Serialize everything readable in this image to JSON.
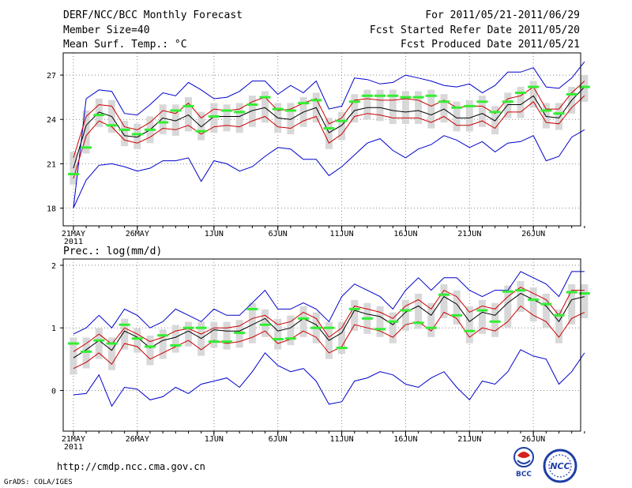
{
  "header": {
    "title": "DERF/NCC/BCC Monthly Forecast",
    "member_size": "Member Size=40",
    "variable": "Mean Surf. Temp.: °C",
    "period": "For 2011/05/21-2011/06/29",
    "start_date": "Fcst Started Refer Date 2011/05/20",
    "produced_date": "Fcst Produced Date 2011/05/21"
  },
  "footer": {
    "url": "http://cmdp.ncc.cma.gov.cn",
    "grads_credit": "GrADS: COLA/IGES",
    "logo_bcc": "BCC",
    "logo_ncc": "NCC"
  },
  "colors": {
    "envelope": "#0000cc",
    "spread": "#cc0000",
    "mean": "#000000",
    "box": "#d8d8d8",
    "marker": "#33ee33"
  },
  "chart_data": [
    {
      "type": "line",
      "title": "Mean Surf. Temp.: °C",
      "x_tick_labels": [
        "21MAY",
        "26MAY",
        "1JUN",
        "6JUN",
        "11JUN",
        "16JUN",
        "21JUN",
        "26JUN"
      ],
      "x_tick_days": [
        0,
        5,
        11,
        16,
        21,
        26,
        31,
        36
      ],
      "x_year_label": "2011",
      "y_ticks": [
        18,
        21,
        24,
        27
      ],
      "ylim": [
        16.8,
        28.5
      ],
      "xlim": [
        -0.8,
        39.7
      ],
      "series": [
        {
          "name": "max",
          "values": [
            18.0,
            25.4,
            26.0,
            25.9,
            24.4,
            24.3,
            25.0,
            25.8,
            25.6,
            26.5,
            26.0,
            25.4,
            25.5,
            25.9,
            26.6,
            26.6,
            25.7,
            26.3,
            25.8,
            26.6,
            24.7,
            24.9,
            26.8,
            26.7,
            26.4,
            26.5,
            27.0,
            26.8,
            26.6,
            26.3,
            26.2,
            26.4,
            25.8,
            26.3,
            27.2,
            27.2,
            27.5,
            26.2,
            26.1,
            26.8,
            27.9
          ]
        },
        {
          "name": "spread_high",
          "values": [
            21.4,
            24.2,
            25.0,
            24.9,
            23.5,
            23.3,
            23.8,
            24.6,
            24.4,
            25.1,
            24.1,
            24.7,
            24.6,
            24.7,
            25.2,
            25.5,
            24.6,
            24.7,
            25.1,
            25.4,
            23.7,
            24.1,
            25.3,
            25.4,
            25.3,
            25.3,
            25.4,
            25.3,
            24.9,
            25.3,
            24.8,
            24.9,
            24.9,
            24.4,
            25.4,
            25.6,
            26.2,
            24.7,
            24.7,
            25.8,
            26.6
          ]
        },
        {
          "name": "mean",
          "values": [
            20.7,
            23.6,
            24.5,
            24.2,
            22.9,
            22.8,
            23.3,
            24.1,
            23.9,
            24.3,
            23.5,
            24.2,
            24.2,
            24.2,
            24.6,
            24.8,
            24.1,
            24.0,
            24.5,
            24.8,
            23.1,
            23.6,
            24.6,
            24.8,
            24.8,
            24.6,
            24.5,
            24.6,
            24.3,
            24.7,
            24.1,
            24.1,
            24.4,
            23.9,
            25.0,
            25.0,
            25.6,
            24.2,
            24.1,
            25.3,
            26.2
          ]
        },
        {
          "name": "spread_low",
          "values": [
            20.0,
            22.9,
            23.9,
            23.5,
            22.6,
            22.4,
            22.8,
            23.4,
            23.3,
            23.6,
            23.0,
            23.5,
            23.6,
            23.5,
            23.9,
            24.2,
            23.5,
            23.4,
            23.9,
            24.2,
            22.4,
            23.0,
            24.2,
            24.4,
            24.3,
            24.1,
            24.1,
            24.1,
            23.8,
            24.2,
            23.6,
            23.6,
            23.9,
            23.4,
            24.5,
            24.5,
            25.2,
            23.8,
            23.7,
            24.8,
            25.6
          ]
        },
        {
          "name": "min",
          "values": [
            18.0,
            19.9,
            20.9,
            21.0,
            20.8,
            20.5,
            20.7,
            21.2,
            21.2,
            21.4,
            19.8,
            21.2,
            21.0,
            20.5,
            20.8,
            21.5,
            22.1,
            22.0,
            21.3,
            21.3,
            20.2,
            20.8,
            21.6,
            22.4,
            22.7,
            21.9,
            21.4,
            22.0,
            22.3,
            22.9,
            22.6,
            22.1,
            22.5,
            21.8,
            22.4,
            22.5,
            22.9,
            21.2,
            21.5,
            22.8,
            23.3
          ]
        },
        {
          "name": "observed",
          "values": [
            20.3,
            22.1,
            24.3,
            23.6,
            23.3,
            23.0,
            23.3,
            23.8,
            24.6,
            24.9,
            23.2,
            24.2,
            24.6,
            24.5,
            25.0,
            25.5,
            24.7,
            24.6,
            25.1,
            25.3,
            23.4,
            23.9,
            25.2,
            25.6,
            25.6,
            25.6,
            25.5,
            25.5,
            25.6,
            25.2,
            24.8,
            24.9,
            25.2,
            24.5,
            25.2,
            25.8,
            26.2,
            24.6,
            24.4,
            25.7,
            26.2
          ]
        }
      ]
    },
    {
      "type": "line",
      "title": "Prec.: log(mm/d)",
      "x_tick_labels": [
        "21MAY",
        "26MAY",
        "1JUN",
        "6JUN",
        "11JUN",
        "16JUN",
        "21JUN",
        "26JUN"
      ],
      "x_tick_days": [
        0,
        5,
        11,
        16,
        21,
        26,
        31,
        36
      ],
      "x_year_label": "2011",
      "y_ticks": [
        0,
        1,
        2
      ],
      "ylim": [
        -0.65,
        2.1
      ],
      "xlim": [
        -0.8,
        39.7
      ],
      "series": [
        {
          "name": "max",
          "values": [
            0.9,
            1.0,
            1.2,
            1.0,
            1.3,
            1.2,
            1.0,
            1.1,
            1.3,
            1.2,
            1.1,
            1.3,
            1.2,
            1.2,
            1.4,
            1.6,
            1.3,
            1.3,
            1.4,
            1.3,
            1.1,
            1.5,
            1.7,
            1.6,
            1.5,
            1.3,
            1.6,
            1.8,
            1.6,
            1.8,
            1.8,
            1.6,
            1.5,
            1.6,
            1.6,
            1.9,
            1.8,
            1.7,
            1.5,
            1.9,
            1.9
          ]
        },
        {
          "name": "spread_high",
          "values": [
            0.62,
            0.75,
            0.9,
            0.74,
            1.0,
            0.9,
            0.78,
            0.85,
            0.95,
            0.99,
            0.9,
            1.0,
            1.0,
            1.03,
            1.15,
            1.2,
            1.05,
            1.1,
            1.25,
            1.15,
            0.85,
            1.0,
            1.35,
            1.3,
            1.25,
            1.15,
            1.35,
            1.45,
            1.3,
            1.6,
            1.5,
            1.25,
            1.35,
            1.3,
            1.5,
            1.65,
            1.55,
            1.45,
            1.2,
            1.6,
            1.6
          ]
        },
        {
          "name": "mean",
          "values": [
            0.52,
            0.65,
            0.8,
            0.64,
            0.95,
            0.85,
            0.68,
            0.8,
            0.85,
            0.95,
            0.83,
            0.97,
            0.95,
            0.95,
            1.05,
            1.15,
            0.95,
            1.0,
            1.15,
            1.05,
            0.8,
            0.92,
            1.28,
            1.22,
            1.18,
            1.05,
            1.25,
            1.35,
            1.2,
            1.5,
            1.38,
            1.1,
            1.25,
            1.2,
            1.4,
            1.55,
            1.45,
            1.35,
            1.1,
            1.45,
            1.5
          ]
        },
        {
          "name": "spread_low",
          "values": [
            0.35,
            0.45,
            0.6,
            0.42,
            0.75,
            0.7,
            0.5,
            0.6,
            0.7,
            0.8,
            0.65,
            0.8,
            0.75,
            0.78,
            0.85,
            0.95,
            0.75,
            0.82,
            0.95,
            0.85,
            0.6,
            0.7,
            1.05,
            1.0,
            0.95,
            0.85,
            1.05,
            1.1,
            0.95,
            1.25,
            1.15,
            0.85,
            1.0,
            0.95,
            1.1,
            1.35,
            1.2,
            1.1,
            0.85,
            1.15,
            1.25
          ]
        },
        {
          "name": "min",
          "values": [
            -0.07,
            -0.05,
            0.25,
            -0.25,
            0.05,
            0.02,
            -0.15,
            -0.1,
            0.05,
            -0.05,
            0.1,
            0.15,
            0.2,
            0.05,
            0.3,
            0.6,
            0.4,
            0.3,
            0.35,
            0.15,
            -0.22,
            -0.18,
            0.15,
            0.2,
            0.3,
            0.25,
            0.1,
            0.05,
            0.2,
            0.3,
            0.05,
            -0.15,
            0.15,
            0.1,
            0.3,
            0.65,
            0.55,
            0.5,
            0.1,
            0.3,
            0.6
          ]
        },
        {
          "name": "observed",
          "values": [
            0.75,
            0.62,
            0.8,
            0.75,
            1.05,
            0.83,
            0.7,
            0.88,
            0.72,
            1.0,
            1.0,
            0.78,
            0.78,
            0.92,
            1.3,
            1.05,
            0.82,
            0.83,
            1.15,
            1.0,
            1.0,
            0.68,
            1.3,
            1.15,
            0.98,
            1.1,
            1.28,
            1.08,
            1.0,
            1.53,
            1.2,
            0.95,
            1.28,
            1.1,
            1.58,
            1.6,
            1.45,
            1.38,
            1.2,
            1.57,
            1.55
          ]
        }
      ]
    }
  ]
}
